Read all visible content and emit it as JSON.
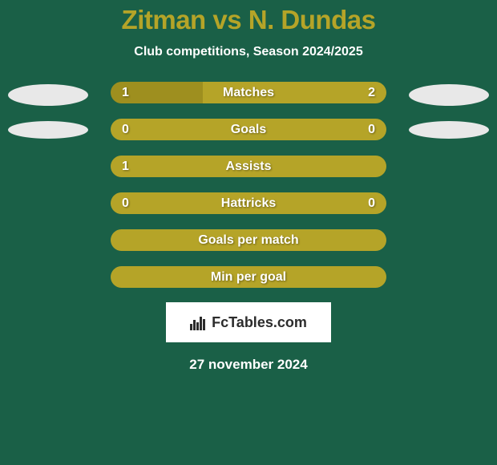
{
  "title": "Zitman vs N. Dundas",
  "subtitle": "Club competitions, Season 2024/2025",
  "date": "27 november 2024",
  "logo_text": "FcTables.com",
  "colors": {
    "background": "#1a6047",
    "title_color": "#b5a428",
    "text_color": "#ffffff",
    "bar_olive": "#b5a428",
    "bar_olive_light": "#c4b43a",
    "bar_olive_dark": "#9e8f1f",
    "avatar_bg": "#e8e8e8",
    "logo_bg": "#ffffff",
    "logo_text": "#2c2c2c"
  },
  "stats": [
    {
      "category": "Matches",
      "left_value": "1",
      "right_value": "2",
      "left_pct": 33.33,
      "right_pct": 66.67,
      "left_color": "#9e8f1f",
      "right_color": "#b5a428"
    },
    {
      "category": "Goals",
      "left_value": "0",
      "right_value": "0",
      "left_pct": 50,
      "right_pct": 50,
      "left_color": "#b5a428",
      "right_color": "#b5a428"
    },
    {
      "category": "Assists",
      "left_value": "1",
      "right_value": "",
      "left_pct": 100,
      "right_pct": 0,
      "left_color": "#b5a428",
      "right_color": "#b5a428"
    },
    {
      "category": "Hattricks",
      "left_value": "0",
      "right_value": "0",
      "left_pct": 50,
      "right_pct": 50,
      "left_color": "#b5a428",
      "right_color": "#b5a428"
    },
    {
      "category": "Goals per match",
      "left_value": "",
      "right_value": "",
      "left_pct": 100,
      "right_pct": 0,
      "left_color": "#b5a428",
      "right_color": "#b5a428"
    },
    {
      "category": "Min per goal",
      "left_value": "",
      "right_value": "",
      "left_pct": 100,
      "right_pct": 0,
      "left_color": "#b5a428",
      "right_color": "#b5a428"
    }
  ],
  "avatars": {
    "left_bg": "#e8e8e8",
    "right_bg": "#e8e8e8"
  },
  "side_ellipses": {
    "left_bg": "#e8e8e8",
    "right_bg": "#e8e8e8"
  }
}
